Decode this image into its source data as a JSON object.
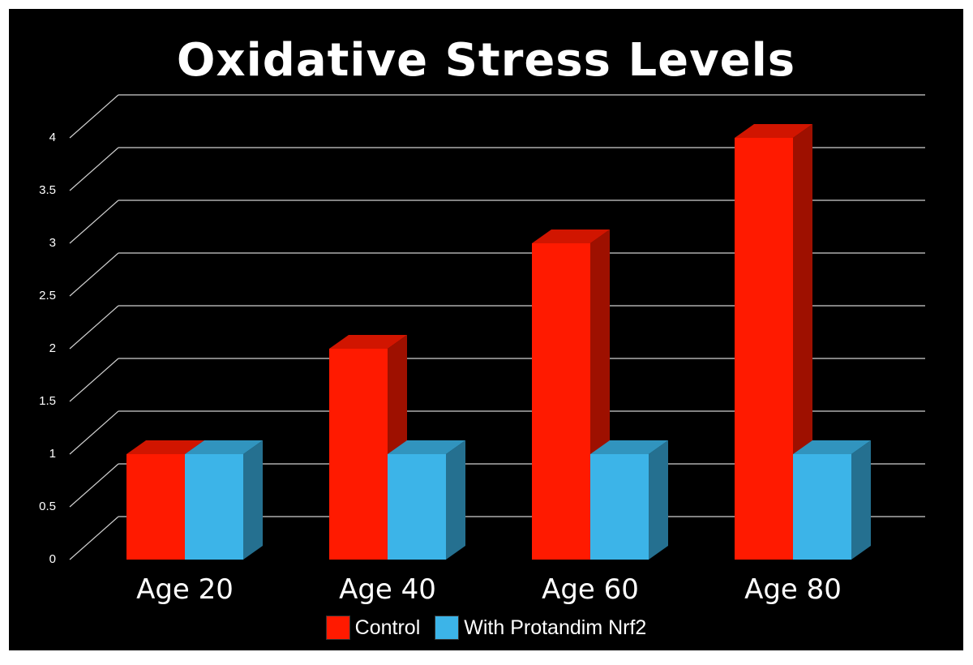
{
  "chart_data": {
    "type": "bar",
    "title": "Oxidative Stress Levels",
    "xlabel": "",
    "ylabel": "",
    "categories": [
      "Age 20",
      "Age 40",
      "Age 60",
      "Age 80"
    ],
    "series": [
      {
        "name": "Control",
        "color": "#ff1a00",
        "values": [
          1,
          2,
          3,
          4
        ]
      },
      {
        "name": "With Protandim Nrf2",
        "color": "#3cb4e8",
        "values": [
          1,
          1,
          1,
          1
        ]
      }
    ],
    "ylim": [
      0,
      4
    ],
    "yticks": [
      "0",
      "0.5",
      "1",
      "1.5",
      "2",
      "2.5",
      "3",
      "3.5",
      "4"
    ],
    "grid": true,
    "legend_position": "bottom",
    "style": "3d-clustered-column",
    "background": "#000000"
  }
}
